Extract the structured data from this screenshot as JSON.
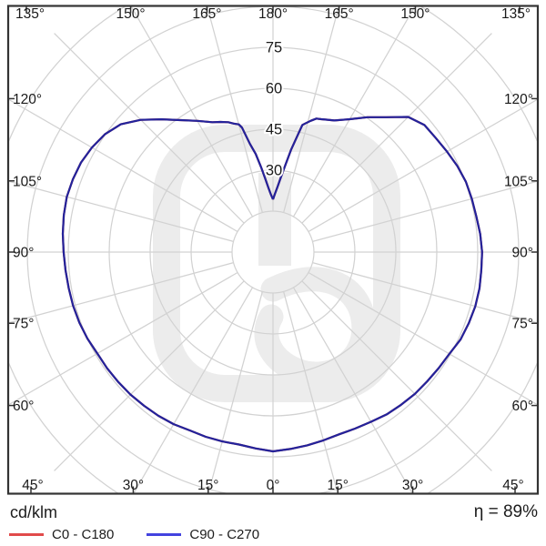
{
  "footer": {
    "unit_label": "cd/klm",
    "efficiency_label": "η = 89%",
    "legend": [
      {
        "label": "C0 - C180",
        "color": "#e14b4b"
      },
      {
        "label": "C90 - C270",
        "color": "#4343df"
      }
    ]
  },
  "chart_data": {
    "type": "polar-line",
    "title": "Luminous intensity distribution polar curve",
    "units": "cd/klm",
    "efficiency": "η = 89%",
    "angle_axis": {
      "zero_direction": "down",
      "spoke_step_deg": 15,
      "labels": [
        {
          "deg": 0,
          "text": "0°"
        },
        {
          "deg": 15,
          "text": "15°"
        },
        {
          "deg": 30,
          "text": "30°"
        },
        {
          "deg": 45,
          "text": "45°"
        },
        {
          "deg": 60,
          "text": "60°"
        },
        {
          "deg": 75,
          "text": "75°"
        },
        {
          "deg": 90,
          "text": "90°"
        },
        {
          "deg": 105,
          "text": "105°"
        },
        {
          "deg": 120,
          "text": "120°"
        },
        {
          "deg": 135,
          "text": "135°"
        },
        {
          "deg": 150,
          "text": "150°"
        },
        {
          "deg": 165,
          "text": "165°"
        },
        {
          "deg": 180,
          "text": "180°"
        }
      ]
    },
    "radial_axis": {
      "tick_labels": [
        "30",
        "45",
        "60",
        "75"
      ],
      "tick_values": [
        30,
        45,
        60,
        75
      ],
      "ring_step": 15,
      "outer_ring_drawn": 105,
      "inner_blank_ring": 15
    },
    "series": [
      {
        "name": "C0 - C180",
        "legend_color": "#e14b4b",
        "curve_color": "#c23a3a",
        "note": "coincides with C90 - C270 curve, hidden beneath it",
        "points_same_as": "C90 - C270"
      },
      {
        "name": "C90 - C270",
        "legend_color": "#4343df",
        "curve_color": "#23239b",
        "points_left_gamma_value": [
          [
            180,
            19.3
          ],
          [
            178,
            21
          ],
          [
            176,
            23.5
          ],
          [
            174,
            27
          ],
          [
            172,
            31.5
          ],
          [
            170,
            36.5
          ],
          [
            168,
            40.5
          ],
          [
            166,
            47
          ],
          [
            165,
            48.4
          ],
          [
            163,
            49.2
          ],
          [
            161,
            50.3
          ],
          [
            158,
            51.4
          ],
          [
            155,
            52.5
          ],
          [
            150,
            55.5
          ],
          [
            145,
            59
          ],
          [
            140,
            63.5
          ],
          [
            135,
            68.5
          ],
          [
            130,
            72.8
          ],
          [
            125,
            75.2
          ],
          [
            120,
            76.6
          ],
          [
            115,
            77.6
          ],
          [
            110,
            78
          ],
          [
            105,
            78.2
          ],
          [
            100,
            77.8
          ],
          [
            95,
            77.3
          ],
          [
            90,
            76.7
          ],
          [
            85,
            76.3
          ],
          [
            80,
            76
          ],
          [
            75,
            75.8
          ],
          [
            70,
            75.5
          ],
          [
            65,
            75
          ],
          [
            60,
            74.3
          ],
          [
            55,
            74.2
          ],
          [
            50,
            74
          ],
          [
            45,
            73.8
          ],
          [
            40,
            73.5
          ],
          [
            35,
            73.2
          ],
          [
            30,
            72.8
          ],
          [
            25,
            72.1
          ],
          [
            20,
            72
          ],
          [
            15,
            71.8
          ],
          [
            10,
            71.6
          ],
          [
            5,
            72.2
          ],
          [
            0,
            73
          ]
        ],
        "points_right_gamma_value": [
          [
            0,
            73
          ],
          [
            5,
            72.4
          ],
          [
            10,
            71.9
          ],
          [
            15,
            71.4
          ],
          [
            20,
            71
          ],
          [
            25,
            71.3
          ],
          [
            30,
            71.8
          ],
          [
            35,
            72.6
          ],
          [
            40,
            73
          ],
          [
            45,
            73.5
          ],
          [
            50,
            73.7
          ],
          [
            55,
            74.1
          ],
          [
            60,
            74.6
          ],
          [
            65,
            75.8
          ],
          [
            70,
            76.3
          ],
          [
            75,
            76.7
          ],
          [
            80,
            76.8
          ],
          [
            85,
            76.6
          ],
          [
            90,
            76.6
          ],
          [
            95,
            76.2
          ],
          [
            100,
            75.6
          ],
          [
            105,
            75.4
          ],
          [
            110,
            75.2
          ],
          [
            115,
            74.5
          ],
          [
            120,
            73.6
          ],
          [
            125,
            72.8
          ],
          [
            130,
            72.4
          ],
          [
            135,
            70
          ],
          [
            138,
            66.5
          ],
          [
            140,
            64.5
          ],
          [
            145,
            60.3
          ],
          [
            150,
            56.2
          ],
          [
            155,
            53.2
          ],
          [
            158,
            52.3
          ],
          [
            160,
            51.8
          ],
          [
            162,
            51.4
          ],
          [
            164,
            50
          ],
          [
            166,
            48.5
          ],
          [
            167,
            47.8
          ],
          [
            168,
            44
          ],
          [
            170,
            38
          ],
          [
            172,
            32
          ],
          [
            174,
            27.5
          ],
          [
            176,
            24
          ],
          [
            178,
            21.5
          ],
          [
            180,
            19.3
          ]
        ]
      }
    ],
    "style": {
      "grid_color": "#d2d2d2",
      "border_color": "#333333",
      "text_color": "#1a1a1a",
      "watermark_color": "#ececec",
      "background": "#ffffff"
    }
  }
}
